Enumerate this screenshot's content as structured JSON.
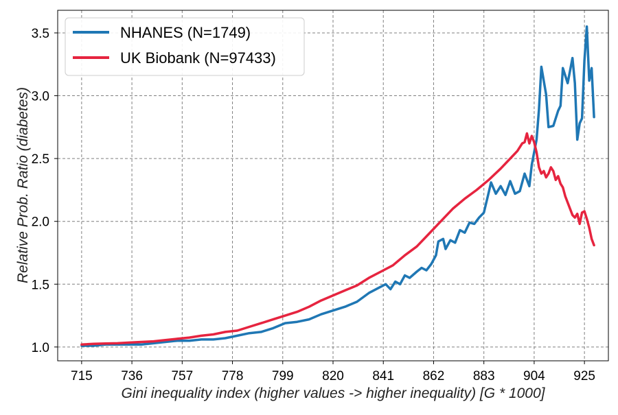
{
  "chart_data": {
    "type": "line",
    "xlabel": "Gini inequality index (higher values -> higher inequality) [G * 1000]",
    "ylabel": "Relative Prob. Ratio (diabetes)",
    "xlim": [
      705,
      935
    ],
    "ylim": [
      0.89,
      3.68
    ],
    "x_ticks": [
      715,
      736,
      757,
      778,
      799,
      820,
      841,
      862,
      883,
      904,
      925
    ],
    "y_ticks": [
      1.0,
      1.5,
      2.0,
      2.5,
      3.0,
      3.5
    ],
    "x_tick_labels": [
      "715",
      "736",
      "757",
      "778",
      "799",
      "820",
      "841",
      "862",
      "883",
      "904",
      "925"
    ],
    "y_tick_labels": [
      "1.0",
      "1.5",
      "2.0",
      "2.5",
      "3.0",
      "3.5"
    ],
    "grid": true,
    "legend_position": "top-left",
    "series": [
      {
        "name": "NHANES (N=1749)",
        "color": "#1f77b4",
        "points": [
          [
            715,
            1.01
          ],
          [
            720,
            1.01
          ],
          [
            725,
            1.02
          ],
          [
            730,
            1.02
          ],
          [
            735,
            1.02
          ],
          [
            740,
            1.02
          ],
          [
            745,
            1.03
          ],
          [
            750,
            1.04
          ],
          [
            755,
            1.05
          ],
          [
            760,
            1.05
          ],
          [
            765,
            1.06
          ],
          [
            770,
            1.06
          ],
          [
            775,
            1.07
          ],
          [
            780,
            1.09
          ],
          [
            785,
            1.11
          ],
          [
            790,
            1.12
          ],
          [
            795,
            1.15
          ],
          [
            800,
            1.19
          ],
          [
            805,
            1.2
          ],
          [
            810,
            1.22
          ],
          [
            815,
            1.26
          ],
          [
            820,
            1.29
          ],
          [
            825,
            1.32
          ],
          [
            830,
            1.36
          ],
          [
            835,
            1.43
          ],
          [
            840,
            1.48
          ],
          [
            842,
            1.5
          ],
          [
            844,
            1.46
          ],
          [
            846,
            1.52
          ],
          [
            848,
            1.5
          ],
          [
            850,
            1.57
          ],
          [
            852,
            1.55
          ],
          [
            855,
            1.6
          ],
          [
            857,
            1.63
          ],
          [
            859,
            1.61
          ],
          [
            861,
            1.66
          ],
          [
            863,
            1.73
          ],
          [
            864,
            1.84
          ],
          [
            866,
            1.86
          ],
          [
            867,
            1.78
          ],
          [
            869,
            1.85
          ],
          [
            871,
            1.83
          ],
          [
            873,
            1.93
          ],
          [
            875,
            1.91
          ],
          [
            877,
            1.99
          ],
          [
            879,
            1.98
          ],
          [
            881,
            2.03
          ],
          [
            883,
            2.07
          ],
          [
            885,
            2.23
          ],
          [
            886,
            2.31
          ],
          [
            888,
            2.22
          ],
          [
            890,
            2.28
          ],
          [
            892,
            2.21
          ],
          [
            894,
            2.32
          ],
          [
            896,
            2.22
          ],
          [
            898,
            2.24
          ],
          [
            900,
            2.38
          ],
          [
            902,
            2.28
          ],
          [
            903,
            2.45
          ],
          [
            905,
            2.65
          ],
          [
            906,
            2.89
          ],
          [
            907,
            3.23
          ],
          [
            909,
            3.01
          ],
          [
            910,
            2.75
          ],
          [
            912,
            2.76
          ],
          [
            914,
            2.88
          ],
          [
            915,
            2.92
          ],
          [
            916,
            3.22
          ],
          [
            918,
            3.1
          ],
          [
            920,
            3.3
          ],
          [
            921,
            3.1
          ],
          [
            922,
            2.65
          ],
          [
            923,
            2.78
          ],
          [
            924,
            2.82
          ],
          [
            925,
            3.28
          ],
          [
            926,
            3.55
          ],
          [
            927,
            3.12
          ],
          [
            928,
            3.22
          ],
          [
            929,
            2.83
          ]
        ]
      },
      {
        "name": "UK Biobank (N=97433)",
        "color": "#e6243f",
        "points": [
          [
            715,
            1.02
          ],
          [
            720,
            1.025
          ],
          [
            725,
            1.028
          ],
          [
            730,
            1.03
          ],
          [
            735,
            1.035
          ],
          [
            740,
            1.04
          ],
          [
            745,
            1.045
          ],
          [
            750,
            1.055
          ],
          [
            755,
            1.065
          ],
          [
            760,
            1.075
          ],
          [
            765,
            1.09
          ],
          [
            770,
            1.1
          ],
          [
            775,
            1.12
          ],
          [
            780,
            1.13
          ],
          [
            785,
            1.16
          ],
          [
            790,
            1.19
          ],
          [
            795,
            1.22
          ],
          [
            800,
            1.25
          ],
          [
            805,
            1.28
          ],
          [
            810,
            1.32
          ],
          [
            815,
            1.37
          ],
          [
            820,
            1.41
          ],
          [
            825,
            1.45
          ],
          [
            830,
            1.49
          ],
          [
            835,
            1.55
          ],
          [
            840,
            1.6
          ],
          [
            845,
            1.65
          ],
          [
            850,
            1.73
          ],
          [
            855,
            1.8
          ],
          [
            860,
            1.9
          ],
          [
            865,
            2.0
          ],
          [
            870,
            2.1
          ],
          [
            875,
            2.18
          ],
          [
            880,
            2.25
          ],
          [
            885,
            2.33
          ],
          [
            890,
            2.42
          ],
          [
            895,
            2.52
          ],
          [
            897,
            2.56
          ],
          [
            899,
            2.62
          ],
          [
            900,
            2.63
          ],
          [
            901,
            2.7
          ],
          [
            902,
            2.62
          ],
          [
            903,
            2.68
          ],
          [
            904,
            2.63
          ],
          [
            905,
            2.55
          ],
          [
            906,
            2.43
          ],
          [
            907,
            2.38
          ],
          [
            908,
            2.4
          ],
          [
            909,
            2.35
          ],
          [
            910,
            2.38
          ],
          [
            911,
            2.43
          ],
          [
            912,
            2.4
          ],
          [
            913,
            2.33
          ],
          [
            914,
            2.36
          ],
          [
            915,
            2.3
          ],
          [
            916,
            2.27
          ],
          [
            917,
            2.2
          ],
          [
            918,
            2.15
          ],
          [
            919,
            2.1
          ],
          [
            920,
            2.05
          ],
          [
            921,
            2.03
          ],
          [
            922,
            2.06
          ],
          [
            923,
            1.98
          ],
          [
            924,
            2.07
          ],
          [
            925,
            2.08
          ],
          [
            926,
            2.02
          ],
          [
            927,
            1.95
          ],
          [
            928,
            1.86
          ],
          [
            929,
            1.81
          ]
        ]
      }
    ]
  }
}
